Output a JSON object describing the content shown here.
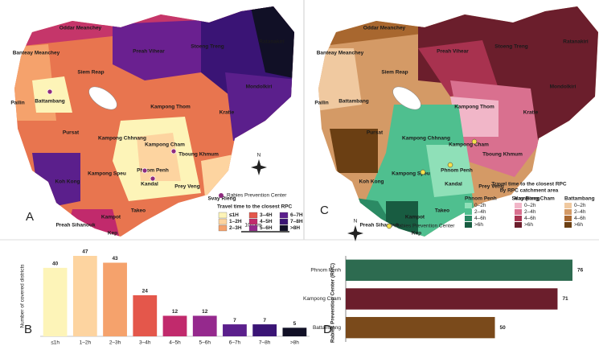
{
  "chart_data": [
    {
      "type": "bar",
      "panel": "B",
      "ylabel": "Number of covered districts",
      "categories": [
        "≤1h",
        "1–2h",
        "2–3h",
        "3–4h",
        "4–5h",
        "5–6h",
        "6–7h",
        "7–8h",
        ">8h"
      ],
      "values": [
        40,
        47,
        43,
        24,
        12,
        12,
        7,
        7,
        5
      ],
      "colors": [
        "#fdf4b8",
        "#fdd4a0",
        "#f5a26c",
        "#e4574b",
        "#c12a6c",
        "#95298d",
        "#5b1f8c",
        "#3a1475",
        "#111026"
      ]
    },
    {
      "type": "hbar",
      "panel": "D",
      "ylabel": "Rabies Prevention Center (RPC)",
      "categories": [
        "Phnom Penh",
        "Kampong Cham",
        "Battambang"
      ],
      "values": [
        76,
        71,
        50
      ],
      "colors": [
        "#2d6b50",
        "#6b1e2c",
        "#7a4a1b"
      ]
    }
  ],
  "maps": {
    "panels": [
      "A",
      "C"
    ],
    "provinces": [
      "Oddar Meanchey",
      "Banteay Meanchey",
      "Preah Vihear",
      "Stoeng Treng",
      "Ratanakiri",
      "Siem Reap",
      "Battambang",
      "Pailin",
      "Kampong Thom",
      "Kratie",
      "Mondolkiri",
      "Pursat",
      "Kampong Chhnang",
      "Kampong Cham",
      "Tboung Khmum",
      "Koh Kong",
      "Kampong Speu",
      "Phnom Penh",
      "Kandal",
      "Prey Veng",
      "Svay Rieng",
      "Takeo",
      "Kampot",
      "Preah Sihanouk",
      "Kep"
    ],
    "center_label": "Rabies Prevention Center",
    "scale_label": "100 km",
    "north": "N",
    "legend_a": {
      "title": "Travel time to the closest RPC",
      "items": [
        "≤1H",
        "1–2H",
        "2–3H",
        "3–4H",
        "4–5H",
        "5–6H",
        "6–7H",
        "7–8H",
        ">8H"
      ],
      "colors": [
        "#fdf4b8",
        "#fdd4a0",
        "#f5a26c",
        "#e4574b",
        "#c12a6c",
        "#95298d",
        "#5b1f8c",
        "#3a1475",
        "#111026"
      ]
    },
    "legend_c": {
      "title": "Travel time to the closest RPC",
      "subtitle": "by RPC catchment area",
      "groups": [
        {
          "name": "Phnom Penh",
          "items": [
            "0–2h",
            "2–4h",
            "4–6h",
            ">6h"
          ],
          "colors": [
            "#8fe0b8",
            "#4fbf8f",
            "#2b8a64",
            "#185c41"
          ]
        },
        {
          "name": "Kampong Cham",
          "items": [
            "0–2h",
            "2–4h",
            "4–6h",
            ">6h"
          ],
          "colors": [
            "#f1b6c8",
            "#d9708f",
            "#a8324f",
            "#6b1e2c"
          ]
        },
        {
          "name": "Battambang",
          "items": [
            "0–2h",
            "2–4h",
            "4–6h",
            ">6h"
          ],
          "colors": [
            "#f0c9a0",
            "#d49a66",
            "#a8672f",
            "#6b3f13"
          ]
        }
      ]
    }
  }
}
